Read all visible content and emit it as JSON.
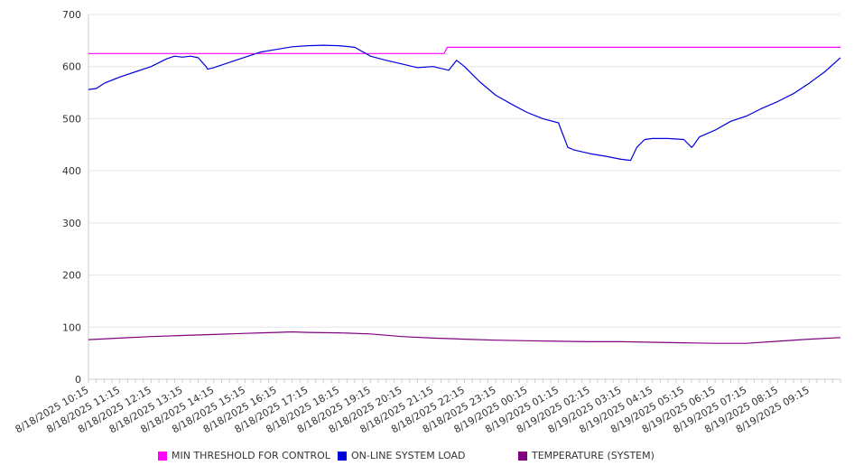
{
  "chart_data": {
    "type": "line",
    "title": "",
    "xlabel": "",
    "ylabel": "",
    "ylim": [
      0,
      700
    ],
    "yticks": [
      0,
      100,
      200,
      300,
      400,
      500,
      600,
      700
    ],
    "grid": true,
    "legend_position": "bottom",
    "x_tick_labels": [
      "8/18/2025 10:15",
      "8/18/2025 11:15",
      "8/18/2025 12:15",
      "8/18/2025 13:15",
      "8/18/2025 14:15",
      "8/18/2025 15:15",
      "8/18/2025 16:15",
      "8/18/2025 17:15",
      "8/18/2025 18:15",
      "8/18/2025 19:15",
      "8/18/2025 20:15",
      "8/18/2025 21:15",
      "8/18/2025 22:15",
      "8/18/2025 23:15",
      "8/19/2025 00:15",
      "8/19/2025 01:15",
      "8/19/2025 02:15",
      "8/19/2025 03:15",
      "8/19/2025 04:15",
      "8/19/2025 05:15",
      "8/19/2025 06:15",
      "8/19/2025 07:15",
      "8/19/2025 08:15",
      "8/19/2025 09:15"
    ],
    "x_range_hours": [
      0,
      24.0
    ],
    "series": [
      {
        "name": "MIN THRESHOLD FOR CONTROL",
        "color": "#ff00ff",
        "x": [
          0,
          11.35,
          11.45,
          24.0
        ],
        "values": [
          625,
          625,
          637,
          637
        ]
      },
      {
        "name": "ON-LINE SYSTEM LOAD",
        "color": "#0000dd",
        "x": [
          0,
          0.25,
          0.5,
          1.0,
          1.5,
          2.0,
          2.5,
          2.75,
          3.0,
          3.25,
          3.5,
          3.75,
          3.8,
          4.0,
          4.5,
          5.0,
          5.5,
          6.0,
          6.5,
          7.0,
          7.5,
          8.0,
          8.5,
          9.0,
          9.5,
          10.0,
          10.5,
          11.0,
          11.5,
          11.75,
          12.0,
          12.25,
          12.5,
          13.0,
          13.5,
          14.0,
          14.5,
          15.0,
          15.3,
          15.5,
          16.0,
          16.5,
          17.0,
          17.3,
          17.5,
          17.75,
          18.0,
          18.5,
          19.0,
          19.25,
          19.3,
          19.5,
          20.0,
          20.5,
          21.0,
          21.5,
          22.0,
          22.5,
          23.0,
          23.5,
          24.0
        ],
        "values": [
          556,
          558,
          568,
          580,
          590,
          600,
          615,
          620,
          618,
          620,
          617,
          600,
          595,
          598,
          608,
          618,
          628,
          633,
          638,
          640,
          641,
          640,
          637,
          620,
          612,
          605,
          598,
          600,
          593,
          612,
          600,
          585,
          570,
          545,
          528,
          512,
          500,
          492,
          445,
          440,
          433,
          428,
          422,
          420,
          445,
          460,
          462,
          462,
          460,
          445,
          448,
          465,
          478,
          495,
          505,
          520,
          533,
          548,
          568,
          590,
          617
        ]
      },
      {
        "name": "TEMPERATURE (SYSTEM)",
        "color": "#800080",
        "x": [
          0,
          1.0,
          2.0,
          3.0,
          4.0,
          5.0,
          5.5,
          6.0,
          6.5,
          7.0,
          8.0,
          9.0,
          10.0,
          11.0,
          12.0,
          13.0,
          14.0,
          15.0,
          16.0,
          17.0,
          18.0,
          19.0,
          20.0,
          21.0,
          22.0,
          23.0,
          24.0
        ],
        "values": [
          76,
          79,
          82,
          84,
          86,
          88,
          89,
          90,
          91,
          90,
          89,
          87,
          82,
          79,
          77,
          75,
          74,
          73,
          72,
          72,
          71,
          70,
          69,
          69,
          73,
          77,
          80
        ]
      }
    ]
  }
}
